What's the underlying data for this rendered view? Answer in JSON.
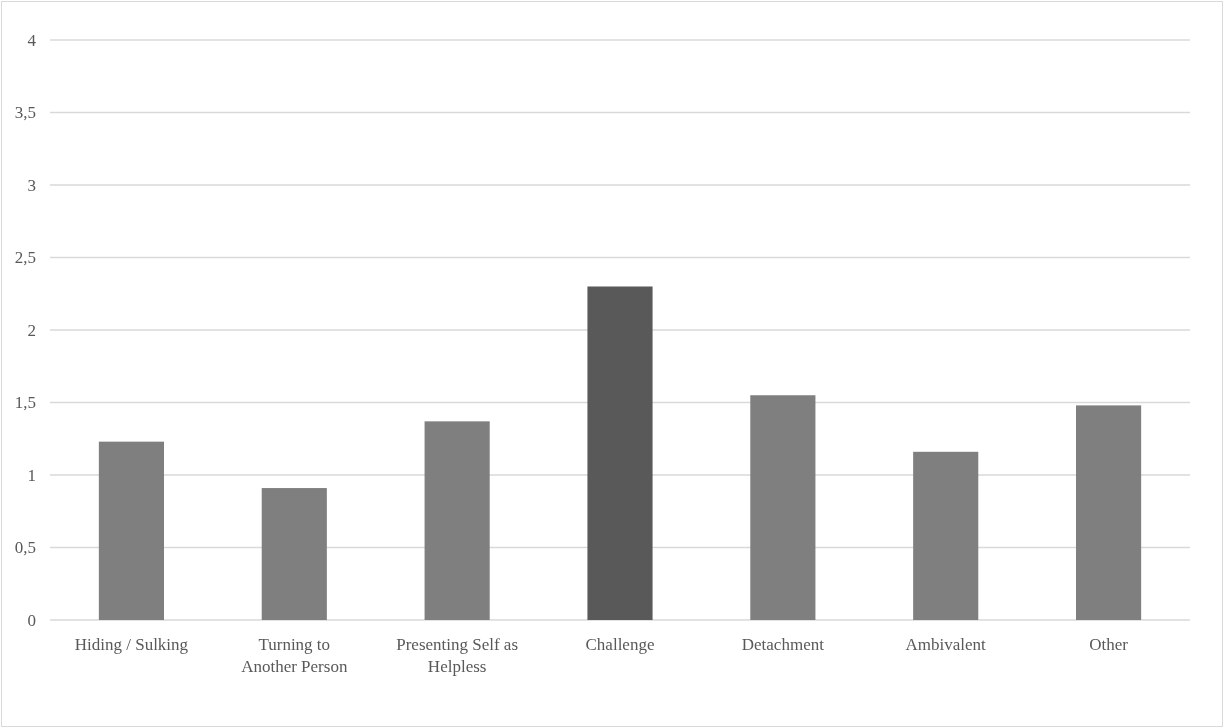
{
  "chart_data": {
    "type": "bar",
    "categories": [
      "Hiding / Sulking",
      "Turning to Another Person",
      "Presenting Self as Helpless",
      "Challenge",
      "Detachment",
      "Ambivalent",
      "Other"
    ],
    "values": [
      1.23,
      0.91,
      1.37,
      2.3,
      1.55,
      1.16,
      1.48
    ],
    "colors": [
      "#7f7f7f",
      "#7f7f7f",
      "#7f7f7f",
      "#595959",
      "#7f7f7f",
      "#7f7f7f",
      "#7f7f7f"
    ],
    "ylim": [
      0,
      4
    ],
    "yticks": [
      0,
      {
        "value": 0.5,
        "label": "0,5"
      },
      1,
      {
        "value": 1.5,
        "label": "1,5"
      },
      2,
      {
        "value": 2.5,
        "label": "2,5"
      },
      3,
      {
        "value": 3.5,
        "label": "3,5"
      },
      4
    ],
    "grid": "y"
  }
}
